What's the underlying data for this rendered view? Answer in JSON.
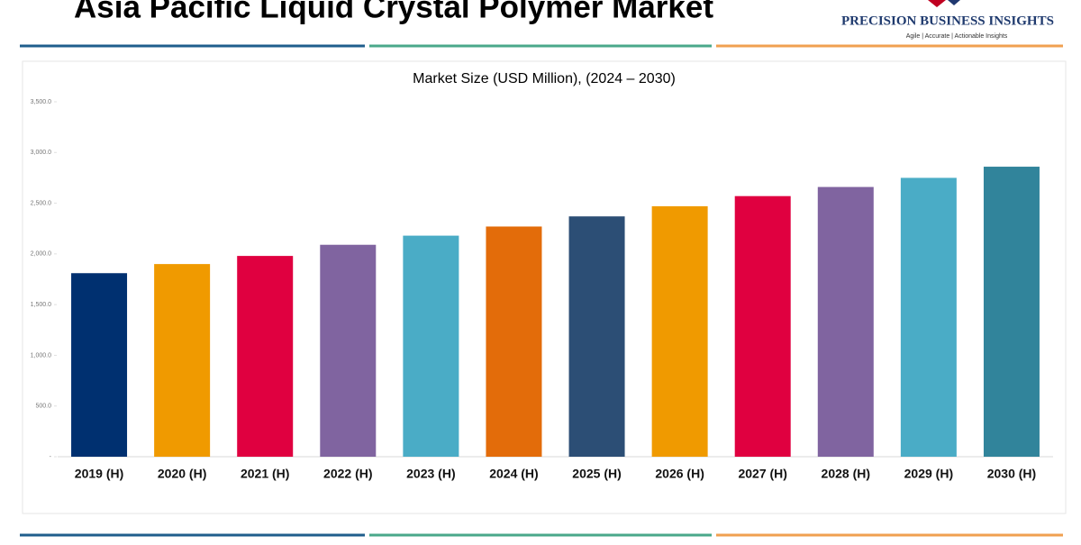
{
  "header": {
    "title": "Asia Pacific Liquid Crystal Polymer Market",
    "brand": "PRECISION BUSINESS INSIGHTS",
    "tagline": "Agile | Accurate | Actionable Insights"
  },
  "chart_data": {
    "type": "bar",
    "title": "Market Size (USD Million), (2024 – 2030)",
    "categories": [
      "2019 (H)",
      "2020 (H)",
      "2021 (H)",
      "2022 (H)",
      "2023 (H)",
      "2024 (H)",
      "2025 (H)",
      "2026 (H)",
      "2027 (H)",
      "2028 (H)",
      "2029 (H)",
      "2030 (H)"
    ],
    "values": [
      1810,
      1900,
      1980,
      2090,
      2180,
      2270,
      2370,
      2470,
      2570,
      2660,
      2750,
      2860
    ],
    "colors": [
      "#003070",
      "#f09a00",
      "#e00040",
      "#8064a0",
      "#4aacc6",
      "#e36c0a",
      "#2c4e75",
      "#f09a00",
      "#e00040",
      "#8064a0",
      "#4aacc6",
      "#31849b"
    ],
    "ylim": [
      0,
      3500
    ],
    "yticks": [
      {
        "value": 0,
        "label": "-"
      },
      {
        "value": 500,
        "label": "500.0"
      },
      {
        "value": 1000,
        "label": "1,000.0"
      },
      {
        "value": 1500,
        "label": "1,500.0"
      },
      {
        "value": 2000,
        "label": "2,000.0"
      },
      {
        "value": 2500,
        "label": "2,500.0"
      },
      {
        "value": 3000,
        "label": "3,000.0"
      },
      {
        "value": 3500,
        "label": "3,500.0"
      }
    ],
    "grid": false
  }
}
